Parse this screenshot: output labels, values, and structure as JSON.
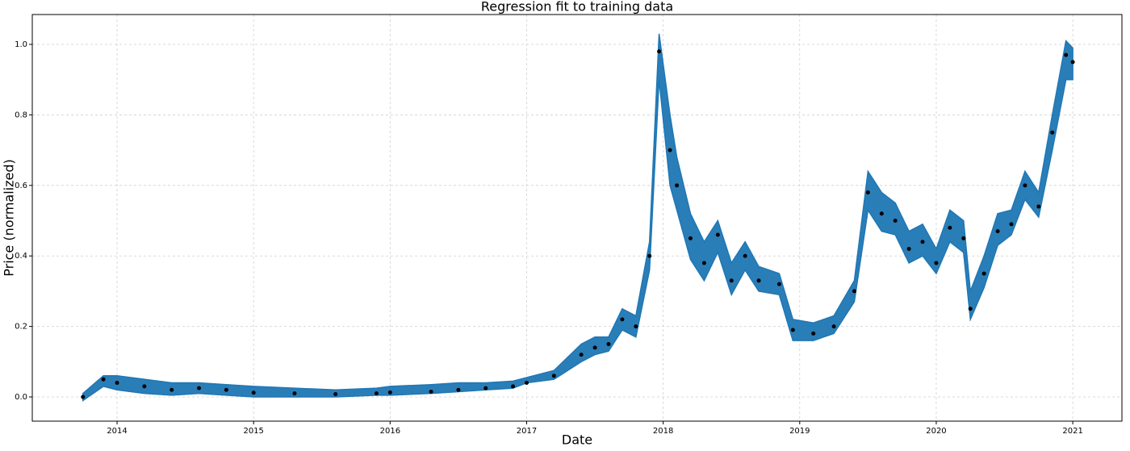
{
  "chart_data": {
    "type": "scatter-band",
    "title": "Regression fit to training data",
    "x_label": "Date",
    "y_label": "Price (normalized)",
    "x": [
      2013.75,
      2013.9,
      2014.0,
      2014.2,
      2014.4,
      2014.6,
      2014.8,
      2015.0,
      2015.3,
      2015.6,
      2015.9,
      2016.0,
      2016.3,
      2016.5,
      2016.7,
      2016.9,
      2017.0,
      2017.2,
      2017.4,
      2017.5,
      2017.6,
      2017.7,
      2017.8,
      2017.9,
      2017.97,
      2018.05,
      2018.1,
      2018.2,
      2018.3,
      2018.4,
      2018.5,
      2018.6,
      2018.7,
      2018.85,
      2018.95,
      2019.1,
      2019.25,
      2019.4,
      2019.5,
      2019.6,
      2019.7,
      2019.8,
      2019.9,
      2020.0,
      2020.1,
      2020.2,
      2020.25,
      2020.35,
      2020.45,
      2020.55,
      2020.65,
      2020.75,
      2020.85,
      2020.95,
      2021.0
    ],
    "values": [
      0.0,
      0.05,
      0.04,
      0.03,
      0.02,
      0.025,
      0.02,
      0.012,
      0.01,
      0.008,
      0.01,
      0.013,
      0.015,
      0.02,
      0.025,
      0.03,
      0.04,
      0.06,
      0.12,
      0.14,
      0.15,
      0.22,
      0.2,
      0.4,
      0.98,
      0.7,
      0.6,
      0.45,
      0.38,
      0.46,
      0.33,
      0.4,
      0.33,
      0.32,
      0.19,
      0.18,
      0.2,
      0.3,
      0.58,
      0.52,
      0.5,
      0.42,
      0.44,
      0.38,
      0.48,
      0.45,
      0.25,
      0.35,
      0.47,
      0.49,
      0.6,
      0.54,
      0.75,
      0.97,
      0.95
    ],
    "color": "#000000",
    "band": {
      "color": "#1f77b4",
      "upper": [
        0.01,
        0.06,
        0.06,
        0.05,
        0.04,
        0.04,
        0.035,
        0.03,
        0.025,
        0.02,
        0.025,
        0.03,
        0.035,
        0.04,
        0.04,
        0.045,
        0.055,
        0.075,
        0.15,
        0.17,
        0.17,
        0.25,
        0.23,
        0.44,
        1.03,
        0.8,
        0.68,
        0.52,
        0.44,
        0.5,
        0.38,
        0.44,
        0.37,
        0.35,
        0.22,
        0.21,
        0.23,
        0.33,
        0.64,
        0.58,
        0.55,
        0.47,
        0.49,
        0.42,
        0.53,
        0.5,
        0.3,
        0.4,
        0.52,
        0.53,
        0.64,
        0.58,
        0.8,
        1.01,
        0.99
      ],
      "lower": [
        -0.01,
        0.03,
        0.02,
        0.01,
        0.005,
        0.01,
        0.005,
        0.0,
        0.0,
        0.0,
        0.005,
        0.005,
        0.01,
        0.015,
        0.02,
        0.025,
        0.04,
        0.05,
        0.1,
        0.12,
        0.13,
        0.19,
        0.17,
        0.36,
        0.9,
        0.6,
        0.53,
        0.39,
        0.33,
        0.41,
        0.29,
        0.36,
        0.3,
        0.29,
        0.16,
        0.16,
        0.18,
        0.27,
        0.53,
        0.47,
        0.46,
        0.38,
        0.4,
        0.35,
        0.44,
        0.41,
        0.22,
        0.31,
        0.43,
        0.46,
        0.56,
        0.51,
        0.7,
        0.9,
        0.9
      ]
    },
    "xlim": [
      2013.379,
      2021.36
    ],
    "xticks": [
      2014,
      2015,
      2016,
      2017,
      2018,
      2019,
      2020,
      2021
    ],
    "ylim": [
      -0.0686,
      1.0847
    ],
    "yticks": [
      {
        "value": 0,
        "label": "0.0"
      },
      0.2,
      0.4,
      0.6,
      0.8,
      {
        "value": 1,
        "label": "1.0"
      }
    ],
    "grid": true
  }
}
